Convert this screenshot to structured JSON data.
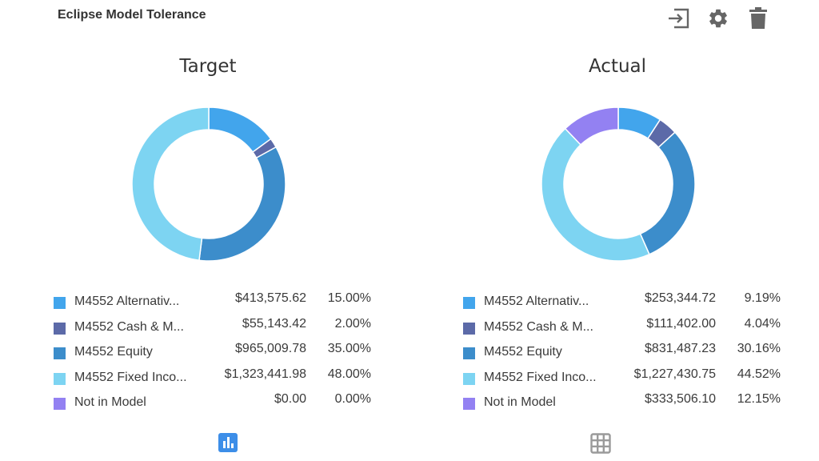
{
  "widget": {
    "title": "Eclipse Model Tolerance"
  },
  "toolbar": {
    "icons": [
      "export-icon",
      "gear-icon",
      "trash-icon"
    ]
  },
  "colors": {
    "alternatives": "#42a5ec",
    "cash": "#5c6aa8",
    "equity": "#3c8dcb",
    "fixed_income": "#7dd4f2",
    "not_in_model": "#9381f2",
    "toggle_active": "#3d8ee8",
    "toggle_inactive": "#9a9a9a"
  },
  "view_toggle": {
    "active": "chart",
    "icons": [
      "bar-chart-icon",
      "grid-icon"
    ]
  },
  "chart_data": [
    {
      "type": "pie",
      "title": "Target",
      "donut": true,
      "categories": [
        "M4552 Alternativ...",
        "M4552 Cash & M...",
        "M4552 Equity",
        "M4552 Fixed Inco...",
        "Not in Model"
      ],
      "values": [
        15.0,
        2.0,
        35.0,
        48.0,
        0.0
      ],
      "amounts": [
        "$413,575.62",
        "$55,143.42",
        "$965,009.78",
        "$1,323,441.98",
        "$0.00"
      ],
      "percents": [
        "15.00%",
        "2.00%",
        "35.00%",
        "48.00%",
        "0.00%"
      ]
    },
    {
      "type": "pie",
      "title": "Actual",
      "donut": true,
      "categories": [
        "M4552 Alternativ...",
        "M4552 Cash & M...",
        "M4552 Equity",
        "M4552 Fixed Inco...",
        "Not in Model"
      ],
      "values": [
        9.19,
        4.04,
        30.16,
        44.52,
        12.15
      ],
      "amounts": [
        "$253,344.72",
        "$111,402.00",
        "$831,487.23",
        "$1,227,430.75",
        "$333,506.10"
      ],
      "percents": [
        "9.19%",
        "4.04%",
        "30.16%",
        "44.52%",
        "12.15%"
      ]
    }
  ]
}
